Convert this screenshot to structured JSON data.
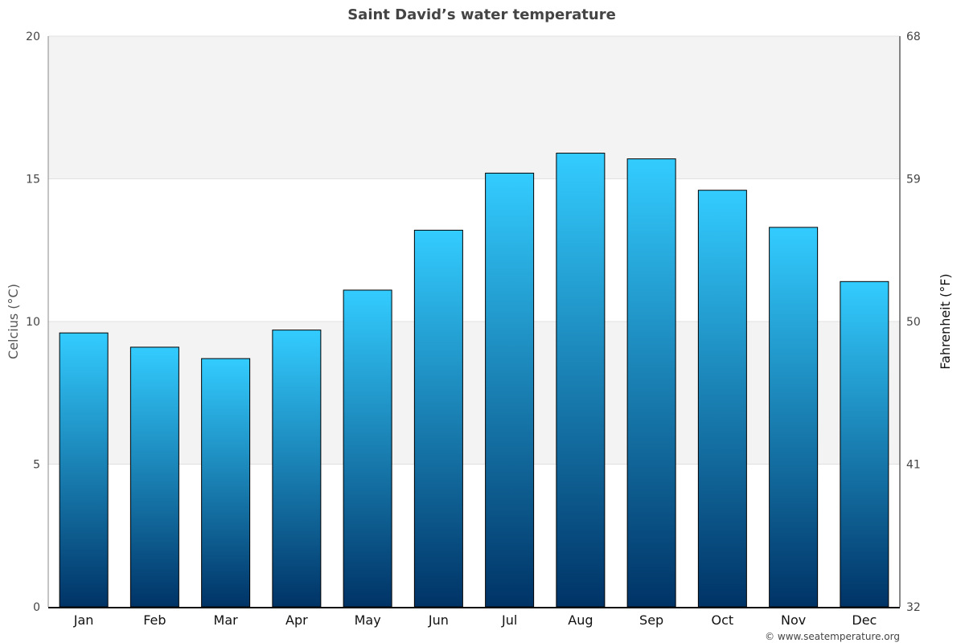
{
  "chart_data": {
    "type": "bar",
    "title": "Saint David’s water temperature",
    "categories": [
      "Jan",
      "Feb",
      "Mar",
      "Apr",
      "May",
      "Jun",
      "Jul",
      "Aug",
      "Sep",
      "Oct",
      "Nov",
      "Dec"
    ],
    "values": [
      9.6,
      9.1,
      8.7,
      9.7,
      11.1,
      13.2,
      15.2,
      15.9,
      15.7,
      14.6,
      13.3,
      11.4
    ],
    "ylabel": "Celcius (°C)",
    "y2label": "Fahrenheit (°F)",
    "ylim": [
      0,
      20
    ],
    "yticks": [
      "0",
      "5",
      "10",
      "15",
      "20"
    ],
    "y2ticks": [
      "32",
      "41",
      "50",
      "59",
      "68"
    ],
    "grid": true,
    "legend": "none",
    "colors": {
      "bar_top": "#33ccff",
      "bar_bottom": "#003366",
      "band": "#f3f3f3"
    }
  },
  "footer": {
    "credit": "© www.seatemperature.org"
  }
}
